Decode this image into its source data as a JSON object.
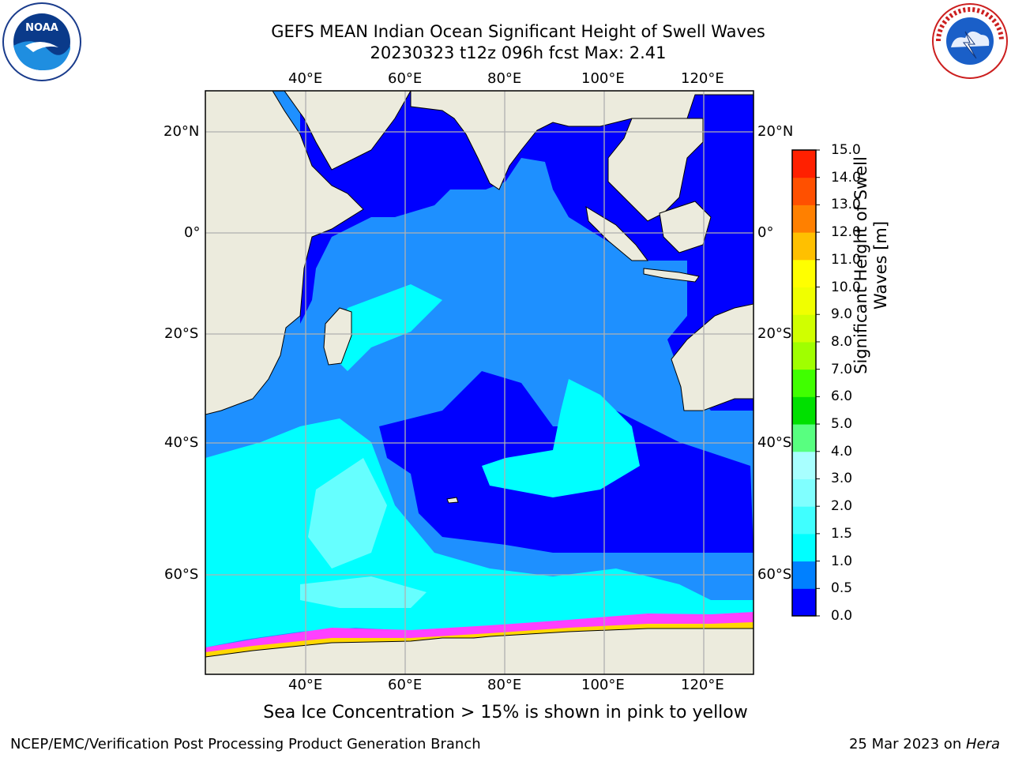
{
  "header": {
    "title_line1": "GEFS MEAN Indian Ocean Significant Height of Swell Waves",
    "title_line2": "20230323 t12z 096h fcst   Max: 2.41"
  },
  "axes": {
    "lon_labels": [
      "40°E",
      "60°E",
      "80°E",
      "100°E",
      "120°E"
    ],
    "lat_labels_left": [
      "20°N",
      "0°",
      "20°S",
      "40°S",
      "60°S"
    ],
    "lat_labels_right": [
      "20°N",
      "0°",
      "20°S",
      "40°S",
      "60°S"
    ]
  },
  "colorbar": {
    "title_line1": "Significant Height of Swell",
    "title_line2": "Waves [m]",
    "ticks": [
      "0.0",
      "0.5",
      "1.0",
      "1.5",
      "2.0",
      "3.0",
      "4.0",
      "5.0",
      "6.0",
      "7.0",
      "8.0",
      "9.0",
      "10.0",
      "11.0",
      "12.0",
      "13.0",
      "14.0",
      "15.0"
    ],
    "colors": [
      "#0000ff",
      "#0080ff",
      "#00ffff",
      "#40ffff",
      "#80ffff",
      "#a8ffff",
      "#58ff80",
      "#00e000",
      "#40ff00",
      "#a0ff00",
      "#d0ff00",
      "#f0ff00",
      "#ffff00",
      "#ffc000",
      "#ff8000",
      "#ff5000",
      "#ff2000",
      "#ff0000"
    ]
  },
  "map_colors": {
    "land": "#ecebdd",
    "ocean_low": "#0000ff",
    "ocean_mid": "#1e90ff",
    "ocean_high": "#00ffff",
    "ocean_higher": "#66ffff",
    "ice_pink": "#ff40ff",
    "ice_yellow": "#ffd700"
  },
  "subtitle": "Sea Ice Concentration > 15% is shown in pink to yellow",
  "footer": {
    "left": "NCEP/EMC/Verification Post Processing Product Generation Branch",
    "right_date": "25 Mar 2023 on ",
    "right_host": "Hera"
  },
  "logos": {
    "left_icon": "noaa-logo",
    "left_text": "NOAA",
    "right_icon": "nws-logo",
    "right_text": "NATIONAL WEATHER SERVICE"
  }
}
